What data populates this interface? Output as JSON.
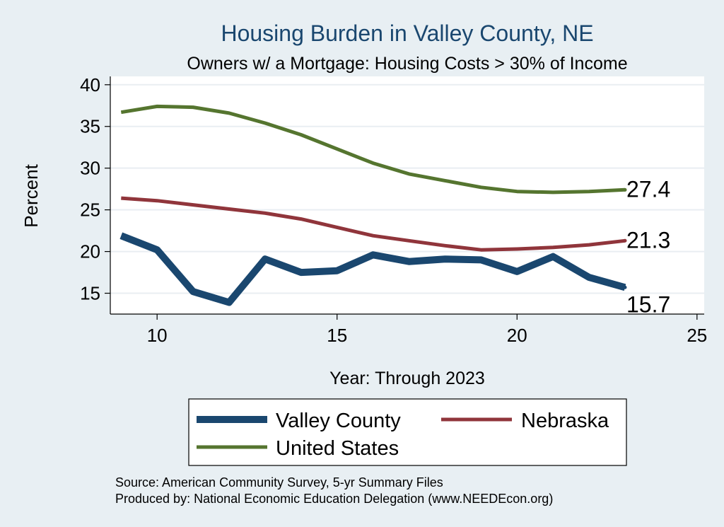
{
  "chart_data": {
    "type": "line",
    "title": "Housing Burden in Valley County, NE",
    "subtitle": "Owners w/ a Mortgage: Housing Costs > 30% of Income",
    "xlabel": "Year: Through 2023",
    "ylabel": "Percent",
    "xlim": [
      8.7,
      25.2
    ],
    "ylim": [
      12.5,
      41
    ],
    "x_ticks": [
      10,
      15,
      20,
      25
    ],
    "y_ticks": [
      15,
      20,
      25,
      30,
      35,
      40
    ],
    "grid": "horizontal",
    "legend_position": "bottom",
    "x": [
      9,
      10,
      11,
      12,
      13,
      14,
      15,
      16,
      17,
      18,
      19,
      20,
      21,
      22,
      23
    ],
    "series": [
      {
        "name": "Valley County",
        "color": "#1a476f",
        "values": [
          21.9,
          20.2,
          15.2,
          13.9,
          19.1,
          17.5,
          17.7,
          19.6,
          18.8,
          19.1,
          19.0,
          17.6,
          19.4,
          16.9,
          15.7
        ],
        "end_label": "15.7"
      },
      {
        "name": "Nebraska",
        "color": "#90353b",
        "values": [
          26.4,
          26.1,
          25.6,
          25.1,
          24.6,
          23.9,
          22.9,
          21.9,
          21.3,
          20.7,
          20.2,
          20.3,
          20.5,
          20.8,
          21.3
        ],
        "end_label": "21.3"
      },
      {
        "name": "United States",
        "color": "#55752f",
        "values": [
          36.7,
          37.4,
          37.3,
          36.6,
          35.4,
          34.0,
          32.3,
          30.6,
          29.3,
          28.5,
          27.7,
          27.2,
          27.1,
          27.2,
          27.4
        ],
        "end_label": "27.4"
      }
    ]
  },
  "footer": {
    "source": "Source: American Community Survey, 5-yr Summary Files",
    "produced_by": "Produced by: National Economic Education Delegation (www.NEEDEcon.org)"
  }
}
